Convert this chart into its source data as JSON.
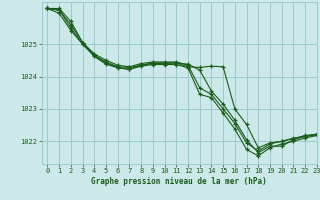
{
  "bg_color": "#cce8e8",
  "grid_color": "#99cccc",
  "line_color": "#1a5c1a",
  "marker_color": "#1a5c1a",
  "xlabel": "Graphe pression niveau de la mer (hPa)",
  "xlabel_color": "#1a5c1a",
  "xlim": [
    -0.5,
    23
  ],
  "ylim": [
    1021.3,
    1026.3
  ],
  "yticks": [
    1022,
    1023,
    1024,
    1025
  ],
  "xticks": [
    0,
    1,
    2,
    3,
    4,
    5,
    6,
    7,
    8,
    9,
    10,
    11,
    12,
    13,
    14,
    15,
    16,
    17,
    18,
    19,
    20,
    21,
    22,
    23
  ],
  "series": [
    [
      1026.1,
      1026.1,
      1025.7,
      1025.05,
      1024.65,
      1024.45,
      1024.3,
      1024.28,
      1024.35,
      1024.4,
      1024.4,
      1024.42,
      1024.38,
      1024.2,
      1023.55,
      1023.15,
      1022.65,
      1022.05,
      1021.65,
      1021.85,
      1021.85,
      1022.05,
      1022.15,
      1022.2
    ],
    [
      1026.1,
      1026.05,
      1025.6,
      1025.05,
      1024.7,
      1024.5,
      1024.35,
      1024.3,
      1024.4,
      1024.45,
      1024.45,
      1024.45,
      1024.35,
      1023.65,
      1023.45,
      1023.0,
      1022.55,
      1021.95,
      1021.7,
      1021.92,
      1022.0,
      1022.08,
      1022.18,
      1022.22
    ],
    [
      1026.1,
      1026.05,
      1025.5,
      1025.0,
      1024.62,
      1024.38,
      1024.27,
      1024.22,
      1024.32,
      1024.37,
      1024.37,
      1024.37,
      1024.27,
      1023.45,
      1023.35,
      1022.87,
      1022.38,
      1021.75,
      1021.55,
      1021.8,
      1021.92,
      1022.0,
      1022.1,
      1022.18
    ],
    [
      1026.1,
      1025.95,
      1025.42,
      1025.0,
      1024.65,
      1024.42,
      1024.28,
      1024.22,
      1024.35,
      1024.42,
      1024.42,
      1024.42,
      1024.3,
      1024.28,
      1024.32,
      1024.3,
      1023.0,
      1022.52,
      1021.8,
      1021.95,
      1022.0,
      1022.1,
      1022.15,
      1022.22
    ]
  ]
}
